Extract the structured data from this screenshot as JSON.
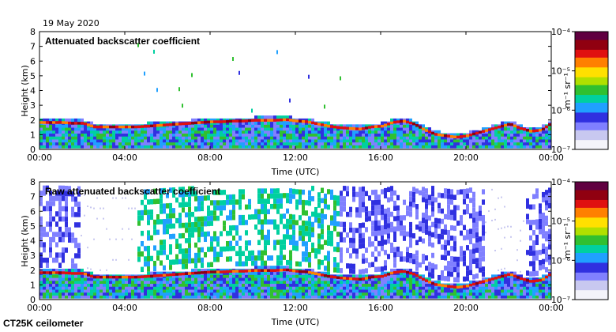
{
  "date": "19 May 2020",
  "footer": "CT25K ceilometer",
  "colors": {
    "ground": "#d9d9d9",
    "scale": [
      "#f4f4fa",
      "#c8c8f0",
      "#8080ff",
      "#3030e0",
      "#20a0ff",
      "#00d0a0",
      "#30c030",
      "#b0e000",
      "#ffe000",
      "#ff8000",
      "#e01010",
      "#900010",
      "#600040"
    ]
  },
  "chart_data": [
    {
      "type": "heatmap",
      "title": "Attenuated backscatter coefficient",
      "xlabel": "Time (UTC)",
      "ylabel": "Height (km)",
      "xlim": [
        "00:00",
        "24:00"
      ],
      "ylim": [
        0,
        8
      ],
      "x_ticks": [
        "00:00",
        "04:00",
        "08:00",
        "12:00",
        "16:00",
        "20:00",
        "00:00"
      ],
      "y_ticks": [
        "0",
        "1",
        "2",
        "3",
        "4",
        "5",
        "6",
        "7",
        "8"
      ],
      "colorbar": {
        "label": "m⁻¹ sr⁻¹",
        "scale": "log",
        "ticks": [
          "10⁻⁷",
          "10⁻⁶",
          "10⁻⁵",
          "10⁻⁴"
        ]
      },
      "cloud_base_km": [
        1.8,
        1.8,
        1.8,
        1.75,
        1.75,
        1.5,
        1.5,
        1.5,
        1.5,
        1.5,
        1.55,
        1.6,
        1.65,
        1.7,
        1.75,
        1.8,
        1.85,
        1.85,
        1.9,
        1.9,
        1.95,
        1.95,
        1.95,
        2.0,
        1.9,
        1.85,
        1.7,
        1.55,
        1.45,
        1.4,
        1.35,
        1.5,
        1.55,
        1.8,
        1.9,
        1.7,
        1.3,
        1.0,
        0.9,
        0.8,
        0.9,
        1.1,
        1.3,
        1.5,
        1.7,
        1.4,
        1.2,
        1.3,
        1.8
      ]
    },
    {
      "type": "heatmap",
      "title": "Raw attenuated backscatter coefficient",
      "xlabel": "Time (UTC)",
      "ylabel": "Height (km)",
      "xlim": [
        "00:00",
        "24:00"
      ],
      "ylim": [
        0,
        8
      ],
      "x_ticks": [
        "00:00",
        "04:00",
        "08:00",
        "12:00",
        "16:00",
        "20:00",
        "00:00"
      ],
      "y_ticks": [
        "0",
        "1",
        "2",
        "3",
        "4",
        "5",
        "6",
        "7",
        "8"
      ],
      "colorbar": {
        "label": "m⁻¹ sr⁻¹",
        "scale": "log",
        "ticks": [
          "10⁻⁷",
          "10⁻⁶",
          "10⁻⁵",
          "10⁻⁴"
        ]
      },
      "cloud_base_km": [
        1.8,
        1.8,
        1.8,
        1.75,
        1.75,
        1.5,
        1.5,
        1.5,
        1.5,
        1.5,
        1.55,
        1.6,
        1.65,
        1.7,
        1.75,
        1.8,
        1.85,
        1.85,
        1.9,
        1.9,
        1.95,
        1.95,
        1.95,
        2.0,
        1.9,
        1.85,
        1.7,
        1.55,
        1.45,
        1.4,
        1.35,
        1.5,
        1.55,
        1.8,
        1.9,
        1.7,
        1.3,
        1.0,
        0.9,
        0.8,
        0.9,
        1.1,
        1.3,
        1.5,
        1.7,
        1.4,
        1.2,
        1.3,
        1.8
      ]
    }
  ]
}
